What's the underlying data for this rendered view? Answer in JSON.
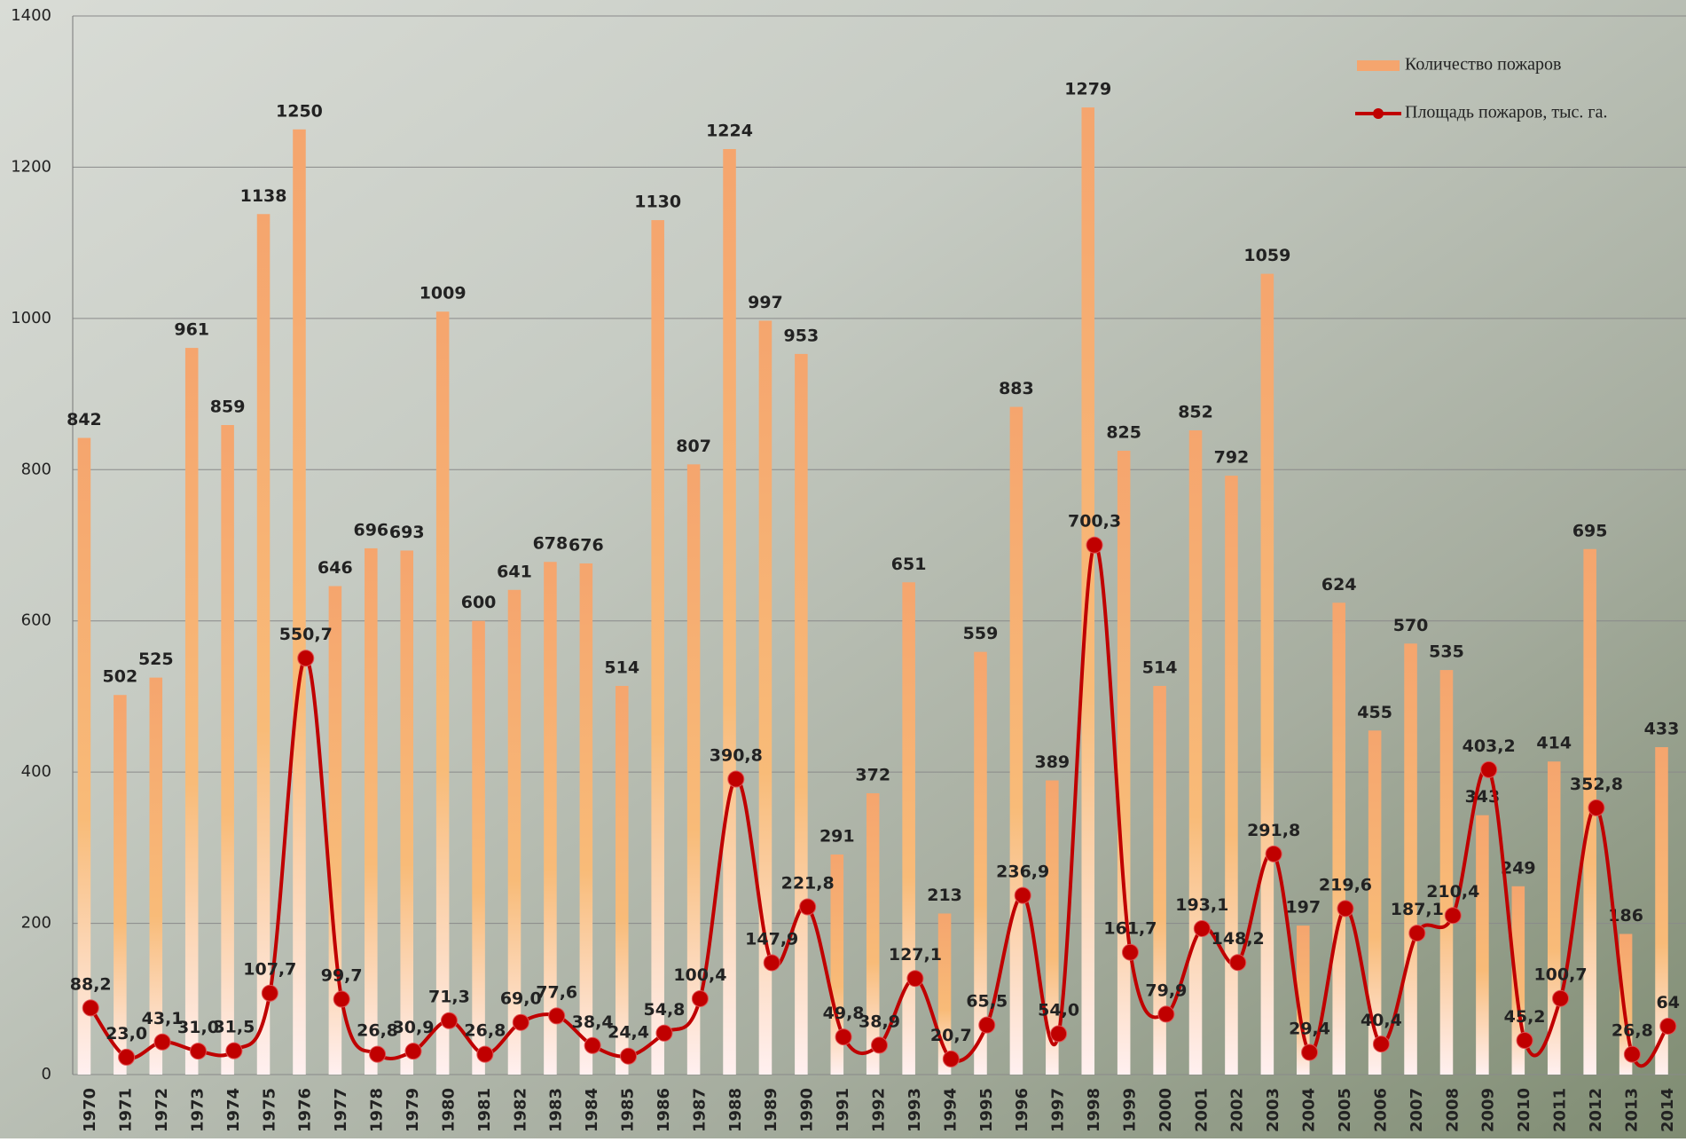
{
  "chart_data": {
    "type": "bar-line",
    "categories": [
      "1970",
      "1971",
      "1972",
      "1973",
      "1974",
      "1975",
      "1976",
      "1977",
      "1978",
      "1979",
      "1980",
      "1981",
      "1982",
      "1983",
      "1984",
      "1985",
      "1986",
      "1987",
      "1988",
      "1989",
      "1990",
      "1991",
      "1992",
      "1993",
      "1994",
      "1995",
      "1996",
      "1997",
      "1998",
      "1999",
      "2000",
      "2001",
      "2002",
      "2003",
      "2004",
      "2005",
      "2006",
      "2007",
      "2008",
      "2009",
      "2010",
      "2011",
      "2012",
      "2013",
      "2014"
    ],
    "series": [
      {
        "name": "Количество пожаров",
        "type": "bar",
        "color": "#f5a56e",
        "values": [
          842,
          502,
          525,
          961,
          859,
          1138,
          1250,
          646,
          696,
          693,
          1009,
          600,
          641,
          678,
          676,
          514,
          1130,
          807,
          1224,
          997,
          953,
          291,
          372,
          651,
          213,
          559,
          883,
          389,
          1279,
          825,
          514,
          852,
          792,
          1059,
          197,
          624,
          455,
          570,
          535,
          343,
          249,
          414,
          695,
          186,
          433
        ]
      },
      {
        "name": "Площадь пожаров, тыс. га.",
        "type": "line",
        "color": "#c00000",
        "values": [
          88.2,
          23.0,
          43.1,
          31.0,
          31.5,
          107.7,
          550.7,
          99.7,
          26.8,
          30.9,
          71.3,
          26.8,
          69.0,
          77.6,
          38.4,
          24.4,
          54.8,
          100.4,
          390.8,
          147.9,
          221.8,
          49.8,
          38.9,
          127.1,
          20.7,
          65.5,
          236.9,
          54.0,
          700.3,
          161.7,
          79.9,
          193.1,
          148.2,
          291.8,
          29.4,
          219.6,
          40.4,
          187.1,
          210.4,
          403.2,
          45.2,
          100.7,
          352.8,
          26.8,
          64
        ],
        "value_labels": [
          "88,2",
          "23,0",
          "43,1",
          "31,0",
          "31,5",
          "107,7",
          "550,7",
          "99,7",
          "26,8",
          "30,9",
          "71,3",
          "26,8",
          "69,0",
          "77,6",
          "38,4",
          "24,4",
          "54,8",
          "100,4",
          "390,8",
          "147,9",
          "221,8",
          "49,8",
          "38,9",
          "127,1",
          "20,7",
          "65,5",
          "236,9",
          "54,0",
          "700,3",
          "161,7",
          "79,9",
          "193,1",
          "148,2",
          "291,8",
          "29,4",
          "219,6",
          "40,4",
          "187,1",
          "210,4",
          "403,2",
          "45,2",
          "100,7",
          "352,8",
          "26,8",
          "64"
        ]
      }
    ],
    "ylim": [
      0,
      1400
    ],
    "yticks": [
      0,
      200,
      400,
      600,
      800,
      1000,
      1200,
      1400
    ],
    "grid": true,
    "legend": "top-right"
  }
}
